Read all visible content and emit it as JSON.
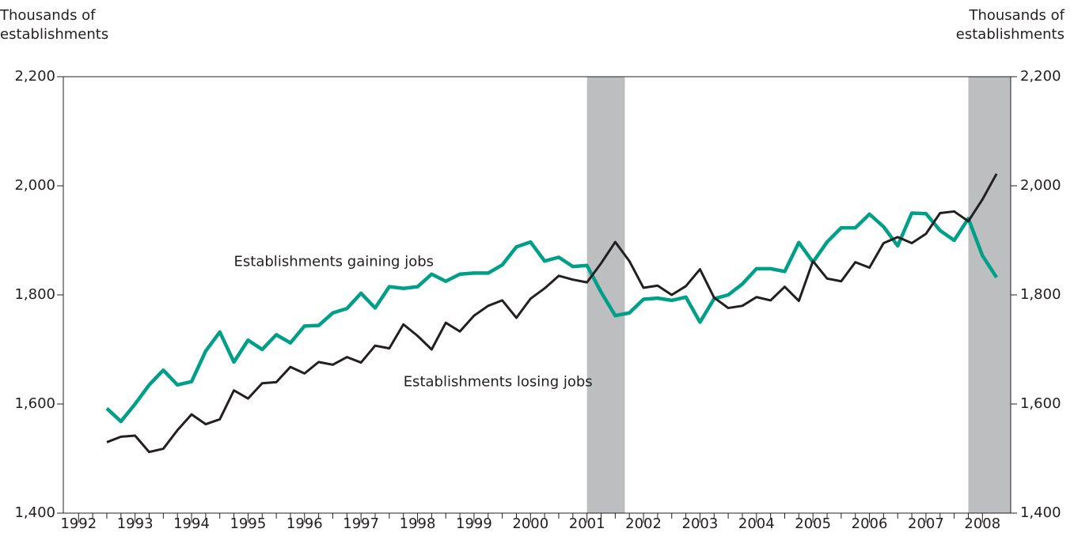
{
  "chart_data": {
    "type": "line",
    "y_label": [
      "Thousands of",
      "establishments"
    ],
    "y2_label": [
      "Thousands of",
      "establishments"
    ],
    "annotations": [
      {
        "text": "Establishments gaining jobs",
        "x": 1994.75,
        "y": 1860
      },
      {
        "text": "Establishments losing jobs",
        "x": 1997.75,
        "y": 1640
      }
    ],
    "x": [
      1992.5,
      1992.75,
      1993,
      1993.25,
      1993.5,
      1993.75,
      1994,
      1994.25,
      1994.5,
      1994.75,
      1995,
      1995.25,
      1995.5,
      1995.75,
      1996,
      1996.25,
      1996.5,
      1996.75,
      1997,
      1997.25,
      1997.5,
      1997.75,
      1998,
      1998.25,
      1998.5,
      1998.75,
      1999,
      1999.25,
      1999.5,
      1999.75,
      2000,
      2000.25,
      2000.5,
      2000.75,
      2001,
      2001.25,
      2001.5,
      2001.75,
      2002,
      2002.25,
      2002.5,
      2002.75,
      2003,
      2003.25,
      2003.5,
      2003.75,
      2004,
      2004.25,
      2004.5,
      2004.75,
      2005,
      2005.25,
      2005.5,
      2005.75,
      2006,
      2006.25,
      2006.5,
      2006.75,
      2007,
      2007.25,
      2007.5,
      2007.75,
      2008,
      2008.25
    ],
    "series": [
      {
        "name": "Establishments gaining jobs",
        "color": "#00a088",
        "values": [
          1592,
          1568,
          1600,
          1635,
          1662,
          1635,
          1641,
          1697,
          1732,
          1677,
          1717,
          1700,
          1727,
          1712,
          1743,
          1744,
          1767,
          1775,
          1803,
          1776,
          1815,
          1812,
          1815,
          1838,
          1825,
          1838,
          1840,
          1840,
          1855,
          1888,
          1897,
          1862,
          1869,
          1852,
          1854,
          1805,
          1762,
          1767,
          1792,
          1794,
          1790,
          1796,
          1750,
          1793,
          1800,
          1820,
          1848,
          1848,
          1843,
          1896,
          1860,
          1897,
          1923,
          1923,
          1948,
          1925,
          1890,
          1950,
          1949,
          1918,
          1900,
          1940,
          1872,
          1832
        ]
      },
      {
        "name": "Establishments losing jobs",
        "color": "#231f20",
        "values": [
          1530,
          1540,
          1542,
          1512,
          1518,
          1552,
          1581,
          1563,
          1572,
          1625,
          1610,
          1638,
          1640,
          1668,
          1656,
          1677,
          1672,
          1686,
          1676,
          1707,
          1702,
          1746,
          1725,
          1700,
          1749,
          1733,
          1762,
          1780,
          1790,
          1758,
          1793,
          1812,
          1835,
          1828,
          1823,
          1858,
          1897,
          1862,
          1813,
          1817,
          1800,
          1816,
          1847,
          1795,
          1776,
          1780,
          1796,
          1790,
          1815,
          1789,
          1862,
          1830,
          1825,
          1860,
          1850,
          1895,
          1906,
          1895,
          1912,
          1950,
          1953,
          1935,
          1975,
          2022
        ]
      }
    ],
    "shaded_periods": [
      [
        2001.0,
        2001.67
      ],
      [
        2007.75,
        2008.5
      ]
    ],
    "shade_color": "#bcbec0",
    "xlim": [
      1991.73,
      2008.5
    ],
    "xticks": [
      1992,
      1993,
      1994,
      1995,
      1996,
      1997,
      1998,
      1999,
      2000,
      2001,
      2002,
      2003,
      2004,
      2005,
      2006,
      2007,
      2008
    ],
    "ylim": [
      1400,
      2200
    ],
    "yticks": [
      {
        "value": 1400,
        "label": "1,400"
      },
      {
        "value": 1600,
        "label": "1,600"
      },
      {
        "value": 1800,
        "label": "1,800"
      },
      {
        "value": 2000,
        "label": "2,000"
      },
      {
        "value": 2200,
        "label": "2,200"
      }
    ],
    "y2lim": [
      1400,
      2200
    ],
    "y2ticks": [
      {
        "value": 1400,
        "label": "1,400"
      },
      {
        "value": 1600,
        "label": "1,600"
      },
      {
        "value": 1800,
        "label": "1,800"
      },
      {
        "value": 2000,
        "label": "2,000"
      },
      {
        "value": 2200,
        "label": "2,200"
      }
    ]
  }
}
